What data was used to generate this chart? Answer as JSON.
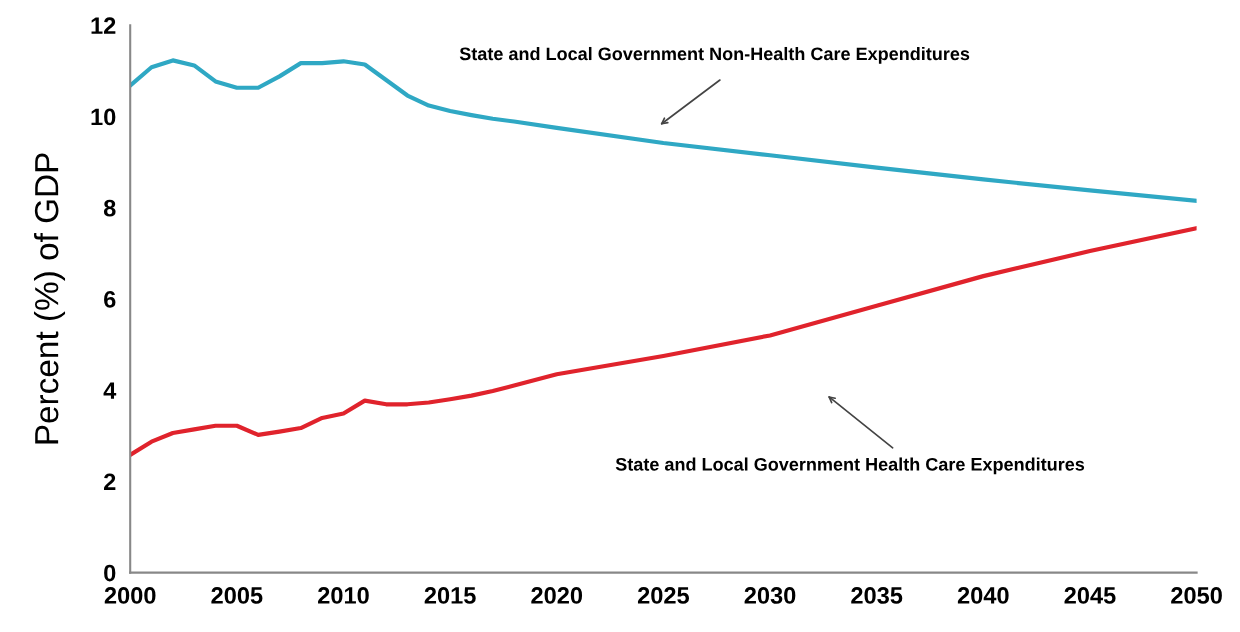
{
  "chart_data": {
    "type": "line",
    "ylabel": "Percent (%) of GDP",
    "x": [
      2000,
      2001,
      2002,
      2003,
      2004,
      2005,
      2006,
      2007,
      2008,
      2009,
      2010,
      2011,
      2012,
      2013,
      2014,
      2015,
      2016,
      2017,
      2018,
      2020,
      2025,
      2030,
      2035,
      2040,
      2045,
      2050
    ],
    "series": [
      {
        "color": "#2fa8c4",
        "values": [
          10.68,
          11.08,
          11.23,
          11.12,
          10.77,
          10.63,
          10.63,
          10.88,
          11.17,
          11.17,
          11.21,
          11.14,
          10.8,
          10.46,
          10.24,
          10.12,
          10.03,
          9.95,
          9.89,
          9.75,
          9.42,
          9.15,
          8.88,
          8.62,
          8.38,
          8.15
        ]
      },
      {
        "color": "#e0232c",
        "values": [
          2.58,
          2.87,
          3.06,
          3.14,
          3.22,
          3.22,
          3.02,
          3.09,
          3.17,
          3.39,
          3.49,
          3.77,
          3.69,
          3.69,
          3.73,
          3.8,
          3.88,
          3.98,
          4.1,
          4.35,
          4.75,
          5.2,
          5.85,
          6.5,
          7.05,
          7.55
        ]
      }
    ],
    "annotations": [
      "State and Local Government Non-Health Care Expenditures",
      "State and Local Government Health Care Expenditures"
    ],
    "xlim": [
      2000,
      2050
    ],
    "ylim": [
      0,
      12
    ],
    "xticks": [
      2000,
      2005,
      2010,
      2015,
      2020,
      2025,
      2030,
      2035,
      2040,
      2045,
      2050
    ],
    "yticks": [
      0,
      2,
      4,
      6,
      8,
      10,
      12
    ],
    "grid": false,
    "marker": "none",
    "line_style": "solid"
  }
}
